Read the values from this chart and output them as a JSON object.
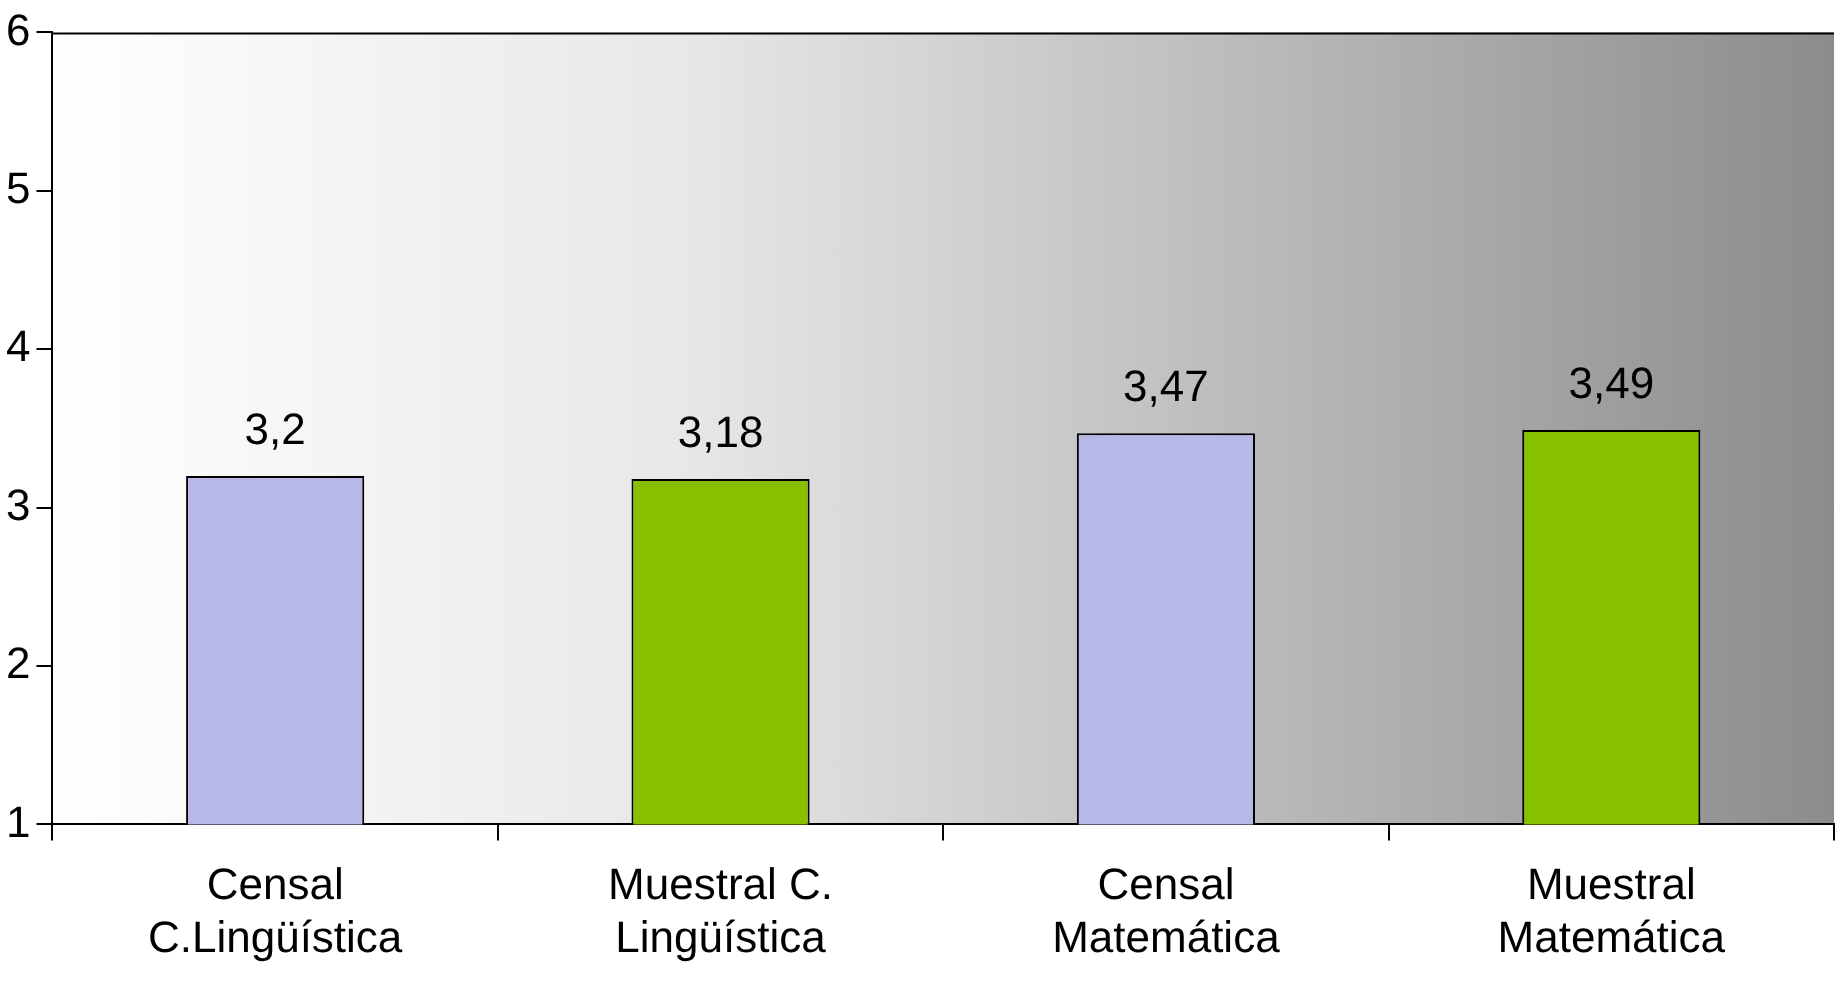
{
  "chart_data": {
    "type": "bar",
    "categories": [
      "Censal\nC.Lingüística",
      "Muestral C.\nLingüística",
      "Censal\nMatemática",
      "Muestral\nMatemática"
    ],
    "values": [
      3.2,
      3.18,
      3.47,
      3.49
    ],
    "value_labels": [
      "3,2",
      "3,18",
      "3,47",
      "3,49"
    ],
    "colors": [
      "#b8b8e8",
      "#88c000",
      "#b8b8e8",
      "#88c000"
    ],
    "ylim": [
      1,
      6
    ],
    "yticks": [
      1,
      2,
      3,
      4,
      5,
      6
    ],
    "grid": false,
    "legend": false
  }
}
